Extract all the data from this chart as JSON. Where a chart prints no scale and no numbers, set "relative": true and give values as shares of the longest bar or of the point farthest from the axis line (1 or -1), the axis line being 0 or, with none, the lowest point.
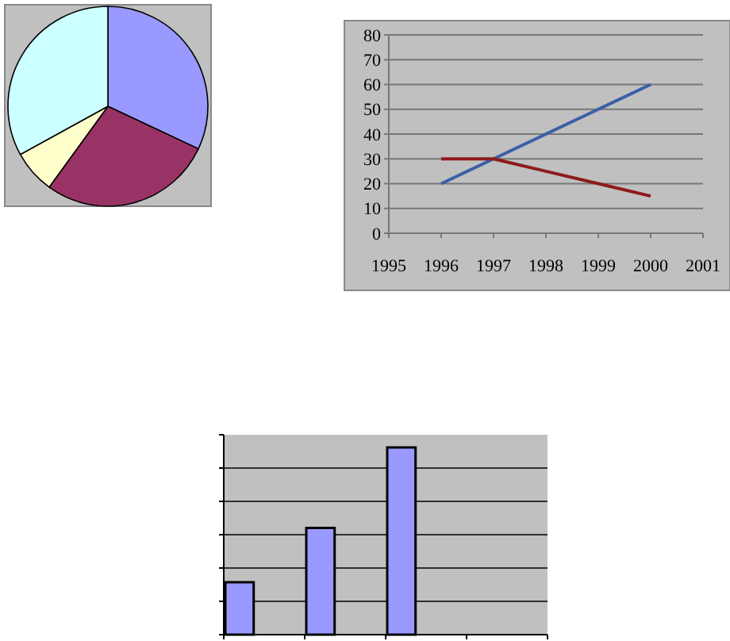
{
  "chart_data": [
    {
      "type": "pie",
      "categories": [
        null,
        null,
        null,
        null
      ],
      "values": [
        32,
        28,
        7,
        33
      ],
      "colors": [
        "#9999ff",
        "#993366",
        "#ffffcc",
        "#ccffff"
      ]
    },
    {
      "type": "line",
      "x": [
        1996,
        1997,
        1998,
        1999,
        2000
      ],
      "series": [
        {
          "color": "#3a5fa8",
          "values": [
            20,
            30,
            40,
            50,
            60
          ]
        },
        {
          "color": "#8e1b1b",
          "values": [
            30,
            30,
            25,
            20,
            15
          ]
        }
      ],
      "xlim": [
        1995,
        2001
      ],
      "xticks": [
        1995,
        1996,
        1997,
        1998,
        1999,
        2000,
        2001
      ],
      "ylim": [
        0,
        80
      ],
      "yticks": [
        0,
        10,
        20,
        30,
        40,
        50,
        60,
        70,
        80
      ],
      "grid": "y"
    },
    {
      "type": "bar",
      "categories": [
        null,
        null,
        null
      ],
      "values": [
        0.28,
        0.57,
        1
      ],
      "color": "#9999ff",
      "relative": true,
      "grid": true
    }
  ]
}
